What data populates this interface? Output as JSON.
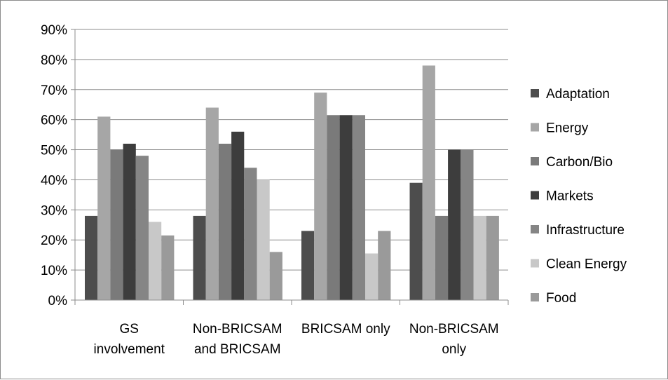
{
  "chart_data": {
    "type": "bar",
    "categories": [
      [
        "GS",
        "involvement"
      ],
      [
        "Non-BRICSAM",
        "and BRICSAM"
      ],
      [
        "BRICSAM only"
      ],
      [
        "Non-BRICSAM",
        "only"
      ]
    ],
    "series": [
      {
        "name": "Adaptation",
        "color": "#4d4d4d",
        "values": [
          28,
          28,
          23,
          39
        ]
      },
      {
        "name": "Energy",
        "color": "#a6a6a6",
        "values": [
          61,
          64,
          69,
          78
        ]
      },
      {
        "name": "Carbon/Bio",
        "color": "#7a7a7a",
        "values": [
          50,
          52,
          61.5,
          28
        ]
      },
      {
        "name": "Markets",
        "color": "#3d3d3d",
        "values": [
          52,
          56,
          61.5,
          50
        ]
      },
      {
        "name": "Infrastructure",
        "color": "#858585",
        "values": [
          48,
          44,
          61.5,
          50
        ]
      },
      {
        "name": "Clean Energy",
        "color": "#c8c8c8",
        "values": [
          26,
          40,
          15.5,
          28
        ]
      },
      {
        "name": "Food",
        "color": "#9a9a9a",
        "values": [
          21.5,
          16,
          23,
          28
        ]
      }
    ],
    "yticks": [
      "0%",
      "10%",
      "20%",
      "30%",
      "40%",
      "50%",
      "60%",
      "70%",
      "80%",
      "90%"
    ],
    "ylim": [
      0,
      90
    ],
    "grid": true,
    "legend": "right"
  }
}
